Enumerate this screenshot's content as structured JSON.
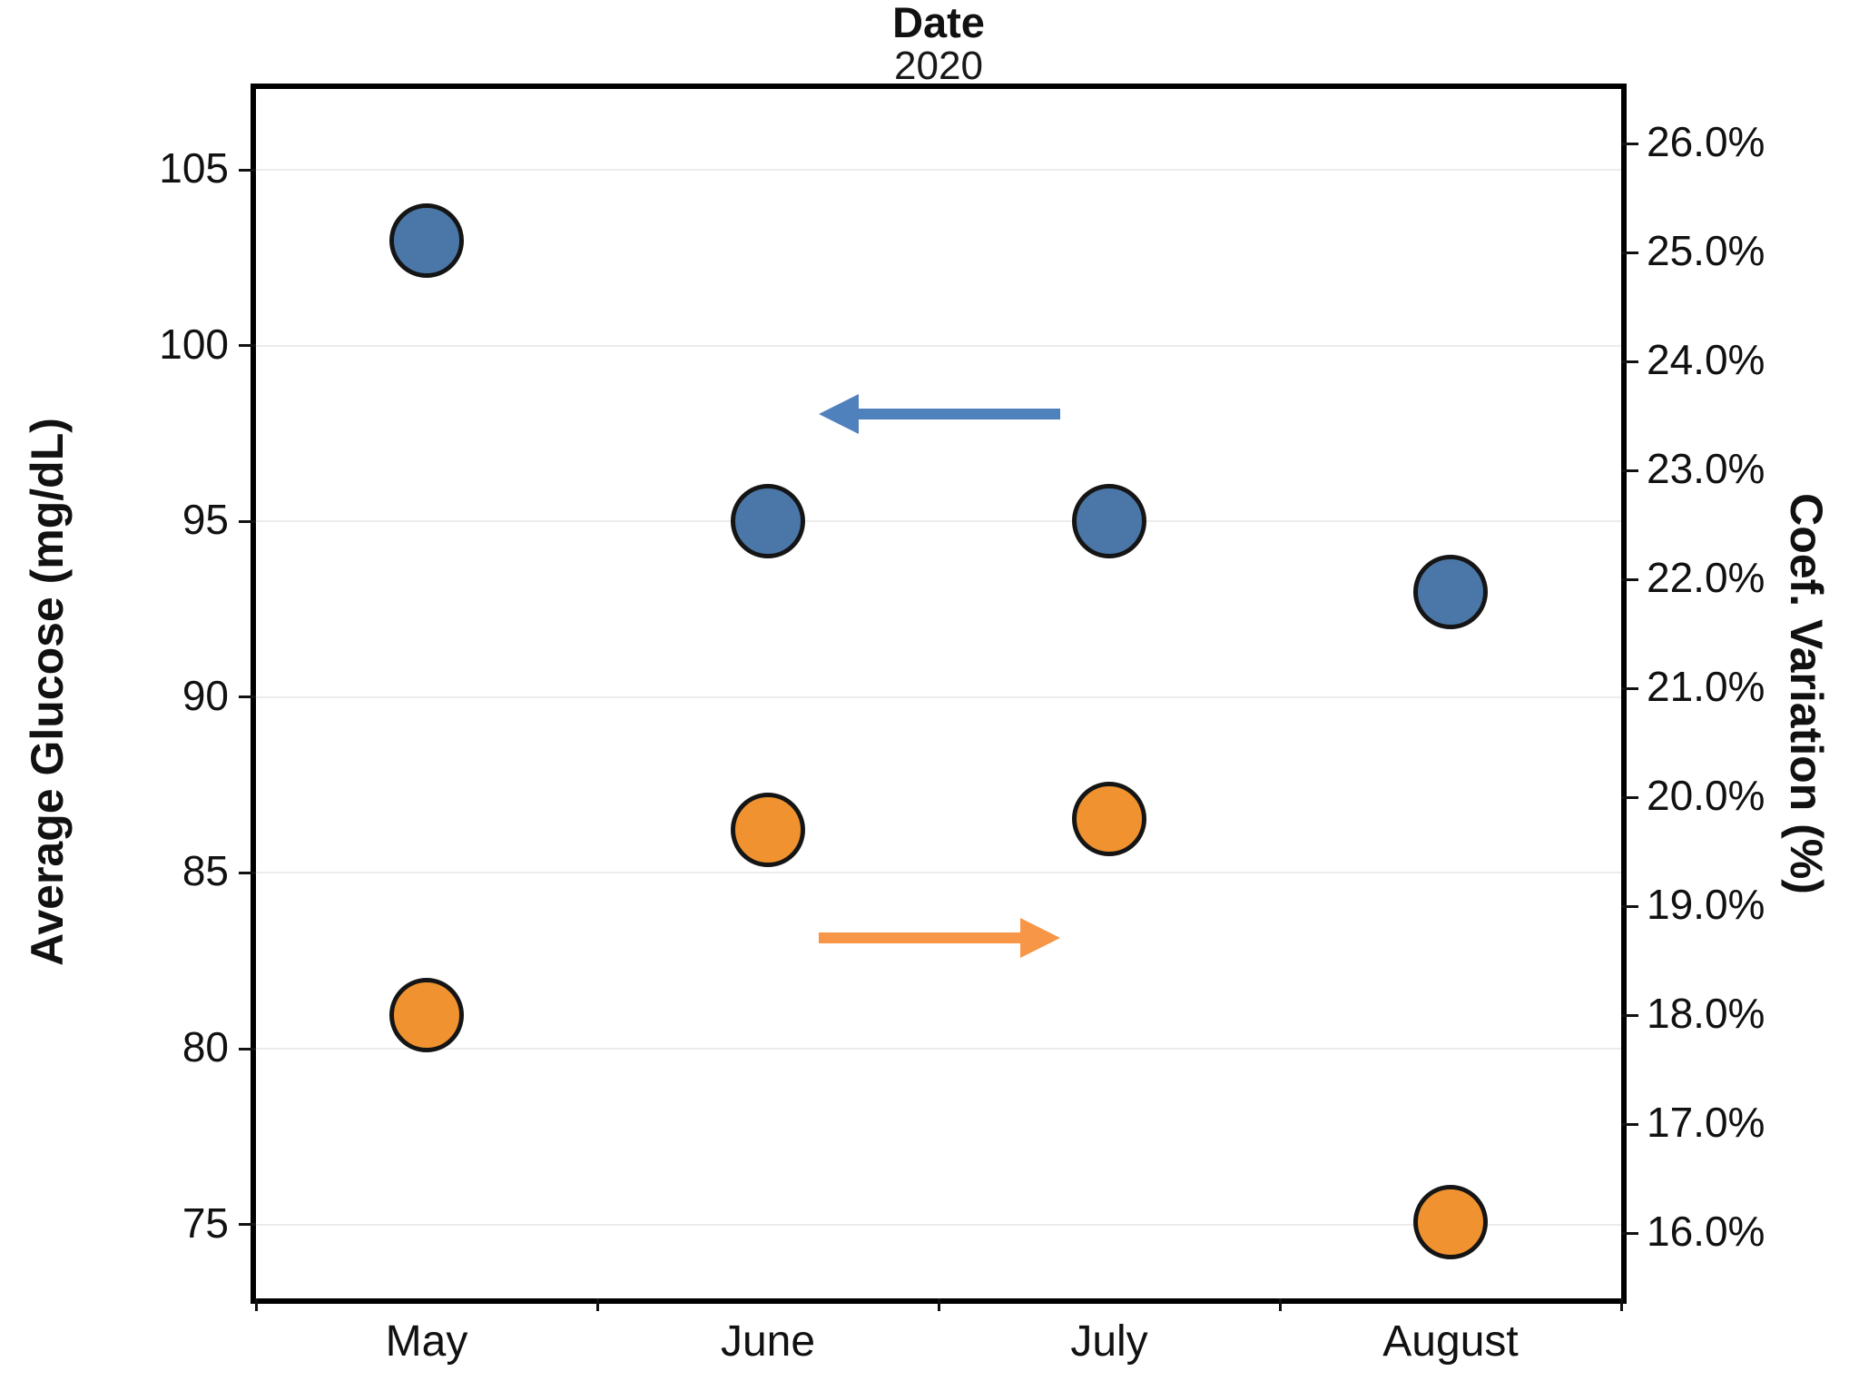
{
  "page": {
    "background": "#ffffff"
  },
  "chart_data": {
    "type": "scatter",
    "title": "Date",
    "subtitle": "2020",
    "categories": [
      "May",
      "June",
      "July",
      "August"
    ],
    "left_axis": {
      "label": "Average Glucose (mg/dL)",
      "ticks": [
        105,
        100,
        95,
        90,
        85,
        80,
        75
      ],
      "min": 72.9,
      "max": 107.3,
      "format": "integer"
    },
    "right_axis": {
      "label": "Coef. Variation (%)",
      "ticks": [
        26.0,
        25.0,
        24.0,
        23.0,
        22.0,
        21.0,
        20.0,
        19.0,
        18.0,
        17.0,
        16.0
      ],
      "min": 15.4,
      "max": 26.5,
      "format": "percent1"
    },
    "series": [
      {
        "name": "Average Glucose (mg/dL)",
        "axis": "left",
        "marker": "circle",
        "color": "#4a77a8",
        "outline": "#151515",
        "values": [
          103,
          95,
          95,
          93
        ]
      },
      {
        "name": "Coef. Variation (%)",
        "axis": "right",
        "marker": "circle",
        "color": "#f0922f",
        "outline": "#151515",
        "values": [
          18.0,
          19.7,
          19.8,
          16.1
        ]
      }
    ],
    "annotations": [
      {
        "id": "glucose-trend-arrow",
        "shape": "arrow",
        "direction": "left",
        "color": "#4f81bd"
      },
      {
        "id": "cv-trend-arrow",
        "shape": "arrow",
        "direction": "right",
        "color": "#f79646"
      }
    ],
    "grid": "horizontal-left-axis-ticks",
    "legend": "none"
  }
}
